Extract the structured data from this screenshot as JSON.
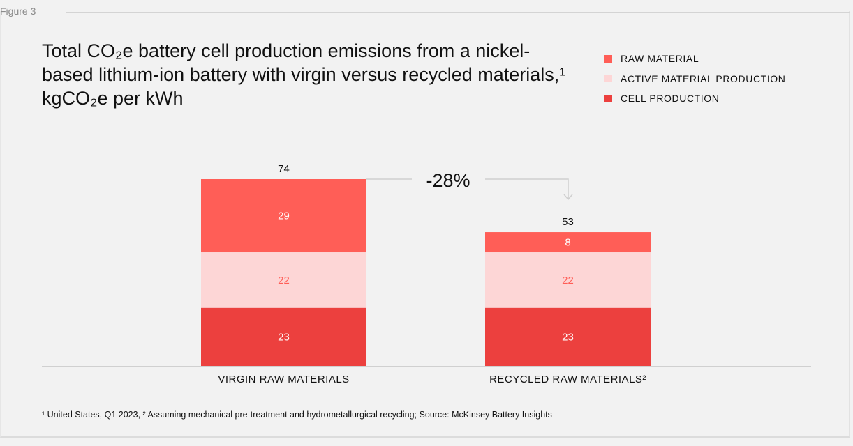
{
  "figure_label": "Figure 3",
  "chart_data": {
    "type": "bar",
    "stacked": true,
    "title": "Total CO₂e battery cell production emissions from a nickel-based lithium-ion battery with virgin versus recycled materials,¹ kgCO₂e per kWh",
    "categories": [
      "VIRGIN RAW MATERIALS",
      "RECYCLED RAW MATERIALS²"
    ],
    "series": [
      {
        "name": "CELL PRODUCTION",
        "values": [
          23,
          23
        ],
        "color": "#ec403e",
        "label_color": "#ffffff"
      },
      {
        "name": "ACTIVE MATERIAL PRODUCTION",
        "values": [
          22,
          22
        ],
        "color": "#fdd6d6",
        "label_color": "#ff5e57"
      },
      {
        "name": "RAW MATERIAL",
        "values": [
          29,
          8
        ],
        "color": "#ff5e57",
        "label_color": "#ffffff"
      }
    ],
    "totals": [
      74,
      53
    ],
    "annotation": "-28%",
    "legend_position": "top-right",
    "ylim": [
      0,
      74
    ],
    "grid": false
  },
  "legend": [
    {
      "label": "RAW MATERIAL",
      "color": "#ff5e57"
    },
    {
      "label": "ACTIVE MATERIAL PRODUCTION",
      "color": "#fdd6d6"
    },
    {
      "label": "CELL PRODUCTION",
      "color": "#ec403e"
    }
  ],
  "footnote": "¹ United States, Q1 2023, ² Assuming mechanical pre-treatment and hydrometallurgical recycling; Source: McKinsey Battery Insights"
}
